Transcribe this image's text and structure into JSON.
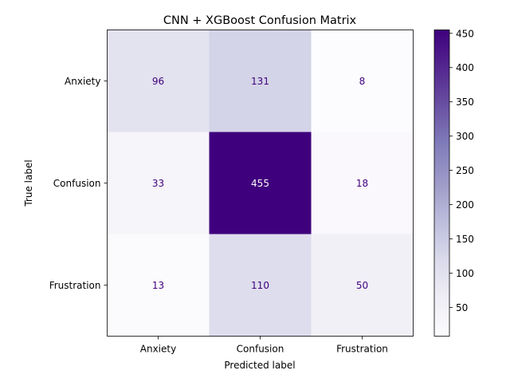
{
  "chart_data": {
    "type": "heatmap",
    "title": "CNN + XGBoost Confusion Matrix",
    "xlabel": "Predicted label",
    "ylabel": "True label",
    "x_categories": [
      "Anxiety",
      "Confusion",
      "Frustration"
    ],
    "y_categories": [
      "Anxiety",
      "Confusion",
      "Frustration"
    ],
    "values": [
      [
        96,
        131,
        8
      ],
      [
        33,
        455,
        18
      ],
      [
        13,
        110,
        50
      ]
    ],
    "colormap": "Purples",
    "color_range": [
      8,
      455
    ],
    "colorbar_ticks": [
      50,
      100,
      150,
      200,
      250,
      300,
      350,
      400,
      450
    ],
    "colors": {
      "low": "#fcfbfd",
      "high": "#3f007d",
      "text_dark": "#3f007d",
      "text_light": "#fcfbfd"
    }
  }
}
